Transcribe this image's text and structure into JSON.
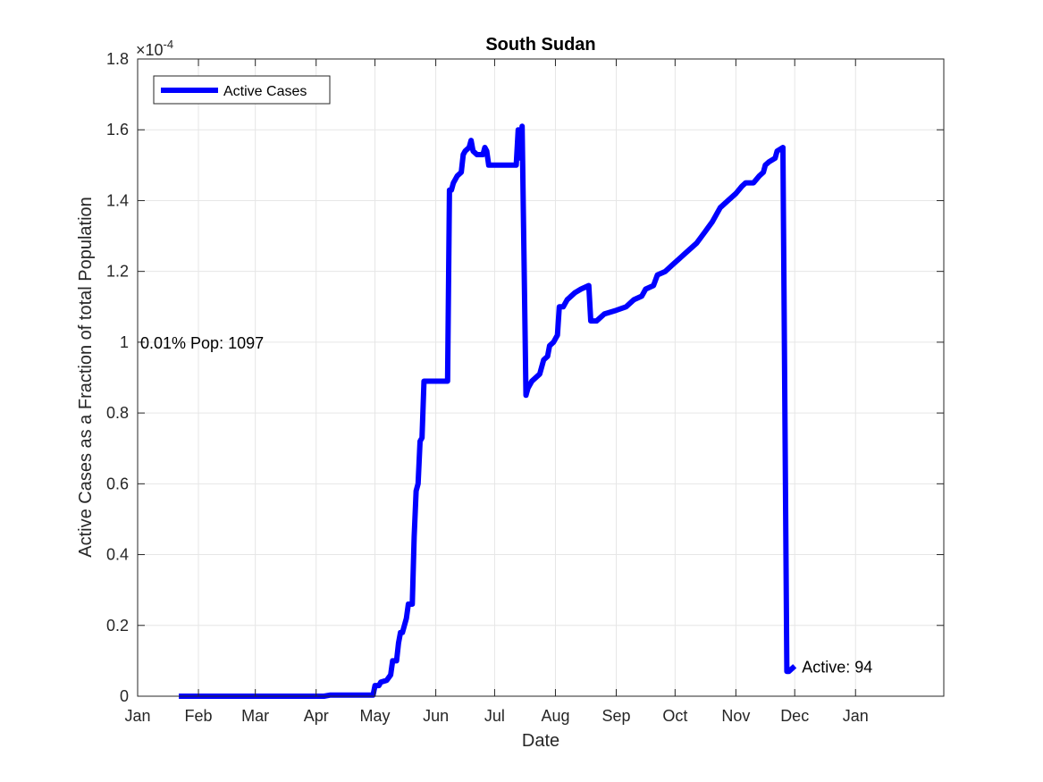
{
  "chart_data": {
    "type": "line",
    "title": "South Sudan",
    "xlabel": "Date",
    "ylabel": "Active Cases as a Fraction of total Population",
    "y_exponent_label": "×10",
    "y_exponent_power": "-4",
    "xlim": [
      "2020-01-01",
      "2021-02-15"
    ],
    "ylim": [
      0,
      1.8
    ],
    "y_scale": 0.0001,
    "grid": true,
    "legend_position": "top-left",
    "x_ticks": [
      {
        "date": "2020-01-01",
        "label": "Jan"
      },
      {
        "date": "2020-02-01",
        "label": "Feb"
      },
      {
        "date": "2020-03-01",
        "label": "Mar"
      },
      {
        "date": "2020-04-01",
        "label": "Apr"
      },
      {
        "date": "2020-05-01",
        "label": "May"
      },
      {
        "date": "2020-06-01",
        "label": "Jun"
      },
      {
        "date": "2020-07-01",
        "label": "Jul"
      },
      {
        "date": "2020-08-01",
        "label": "Aug"
      },
      {
        "date": "2020-09-01",
        "label": "Sep"
      },
      {
        "date": "2020-10-01",
        "label": "Oct"
      },
      {
        "date": "2020-11-01",
        "label": "Nov"
      },
      {
        "date": "2020-12-01",
        "label": "Dec"
      },
      {
        "date": "2021-01-01",
        "label": "Jan"
      }
    ],
    "y_ticks": [
      {
        "value": 0,
        "label": "0"
      },
      {
        "value": 0.2,
        "label": "0.2"
      },
      {
        "value": 0.4,
        "label": "0.4"
      },
      {
        "value": 0.6,
        "label": "0.6"
      },
      {
        "value": 0.8,
        "label": "0.8"
      },
      {
        "value": 1.0,
        "label": "1"
      },
      {
        "value": 1.2,
        "label": "1.2"
      },
      {
        "value": 1.4,
        "label": "1.4"
      },
      {
        "value": 1.6,
        "label": "1.6"
      },
      {
        "value": 1.8,
        "label": "1.8"
      }
    ],
    "series": [
      {
        "name": "Active Cases",
        "color": "#0000ff",
        "points": [
          [
            "2020-01-22",
            0
          ],
          [
            "2020-04-05",
            0
          ],
          [
            "2020-04-08",
            0.003
          ],
          [
            "2020-04-30",
            0.003
          ],
          [
            "2020-05-01",
            0.03
          ],
          [
            "2020-05-03",
            0.03
          ],
          [
            "2020-05-04",
            0.04
          ],
          [
            "2020-05-07",
            0.045
          ],
          [
            "2020-05-09",
            0.06
          ],
          [
            "2020-05-10",
            0.1
          ],
          [
            "2020-05-12",
            0.1
          ],
          [
            "2020-05-13",
            0.15
          ],
          [
            "2020-05-14",
            0.18
          ],
          [
            "2020-05-15",
            0.18
          ],
          [
            "2020-05-16",
            0.2
          ],
          [
            "2020-05-17",
            0.22
          ],
          [
            "2020-05-18",
            0.26
          ],
          [
            "2020-05-20",
            0.26
          ],
          [
            "2020-05-21",
            0.45
          ],
          [
            "2020-05-22",
            0.58
          ],
          [
            "2020-05-23",
            0.6
          ],
          [
            "2020-05-24",
            0.72
          ],
          [
            "2020-05-25",
            0.73
          ],
          [
            "2020-05-26",
            0.89
          ],
          [
            "2020-06-07",
            0.89
          ],
          [
            "2020-06-08",
            1.43
          ],
          [
            "2020-06-09",
            1.43
          ],
          [
            "2020-06-10",
            1.45
          ],
          [
            "2020-06-11",
            1.46
          ],
          [
            "2020-06-12",
            1.47
          ],
          [
            "2020-06-14",
            1.48
          ],
          [
            "2020-06-15",
            1.53
          ],
          [
            "2020-06-16",
            1.54
          ],
          [
            "2020-06-18",
            1.55
          ],
          [
            "2020-06-19",
            1.57
          ],
          [
            "2020-06-20",
            1.54
          ],
          [
            "2020-06-22",
            1.53
          ],
          [
            "2020-06-25",
            1.53
          ],
          [
            "2020-06-26",
            1.55
          ],
          [
            "2020-06-27",
            1.54
          ],
          [
            "2020-06-28",
            1.5
          ],
          [
            "2020-07-12",
            1.5
          ],
          [
            "2020-07-13",
            1.6
          ],
          [
            "2020-07-14",
            1.52
          ],
          [
            "2020-07-15",
            1.61
          ],
          [
            "2020-07-17",
            0.85
          ],
          [
            "2020-07-18",
            0.87
          ],
          [
            "2020-07-20",
            0.89
          ],
          [
            "2020-07-22",
            0.9
          ],
          [
            "2020-07-24",
            0.91
          ],
          [
            "2020-07-25",
            0.93
          ],
          [
            "2020-07-26",
            0.95
          ],
          [
            "2020-07-28",
            0.96
          ],
          [
            "2020-07-29",
            0.99
          ],
          [
            "2020-07-31",
            1.0
          ],
          [
            "2020-08-02",
            1.02
          ],
          [
            "2020-08-03",
            1.1
          ],
          [
            "2020-08-05",
            1.1
          ],
          [
            "2020-08-07",
            1.12
          ],
          [
            "2020-08-09",
            1.13
          ],
          [
            "2020-08-11",
            1.14
          ],
          [
            "2020-08-14",
            1.15
          ],
          [
            "2020-08-18",
            1.16
          ],
          [
            "2020-08-19",
            1.06
          ],
          [
            "2020-08-22",
            1.06
          ],
          [
            "2020-08-26",
            1.08
          ],
          [
            "2020-09-01",
            1.09
          ],
          [
            "2020-09-06",
            1.1
          ],
          [
            "2020-09-10",
            1.12
          ],
          [
            "2020-09-14",
            1.13
          ],
          [
            "2020-09-16",
            1.15
          ],
          [
            "2020-09-20",
            1.16
          ],
          [
            "2020-09-22",
            1.19
          ],
          [
            "2020-09-26",
            1.2
          ],
          [
            "2020-09-30",
            1.22
          ],
          [
            "2020-10-04",
            1.24
          ],
          [
            "2020-10-08",
            1.26
          ],
          [
            "2020-10-12",
            1.28
          ],
          [
            "2020-10-16",
            1.31
          ],
          [
            "2020-10-20",
            1.34
          ],
          [
            "2020-10-24",
            1.38
          ],
          [
            "2020-10-28",
            1.4
          ],
          [
            "2020-11-01",
            1.42
          ],
          [
            "2020-11-04",
            1.44
          ],
          [
            "2020-11-06",
            1.45
          ],
          [
            "2020-11-10",
            1.45
          ],
          [
            "2020-11-13",
            1.47
          ],
          [
            "2020-11-15",
            1.48
          ],
          [
            "2020-11-16",
            1.5
          ],
          [
            "2020-11-18",
            1.51
          ],
          [
            "2020-11-21",
            1.52
          ],
          [
            "2020-11-22",
            1.54
          ],
          [
            "2020-11-25",
            1.55
          ],
          [
            "2020-11-27",
            0.07
          ],
          [
            "2020-11-28",
            0.07
          ],
          [
            "2020-11-29",
            0.075
          ],
          [
            "2020-12-01",
            0.085
          ]
        ]
      }
    ],
    "annotations": [
      {
        "text": "0.01% Pop: 1097",
        "x": "2020-01-01",
        "y": 1.0,
        "anchor": "start"
      },
      {
        "text": "Active: 94",
        "x": "2020-12-01",
        "y": 0.085,
        "anchor": "start"
      }
    ]
  }
}
